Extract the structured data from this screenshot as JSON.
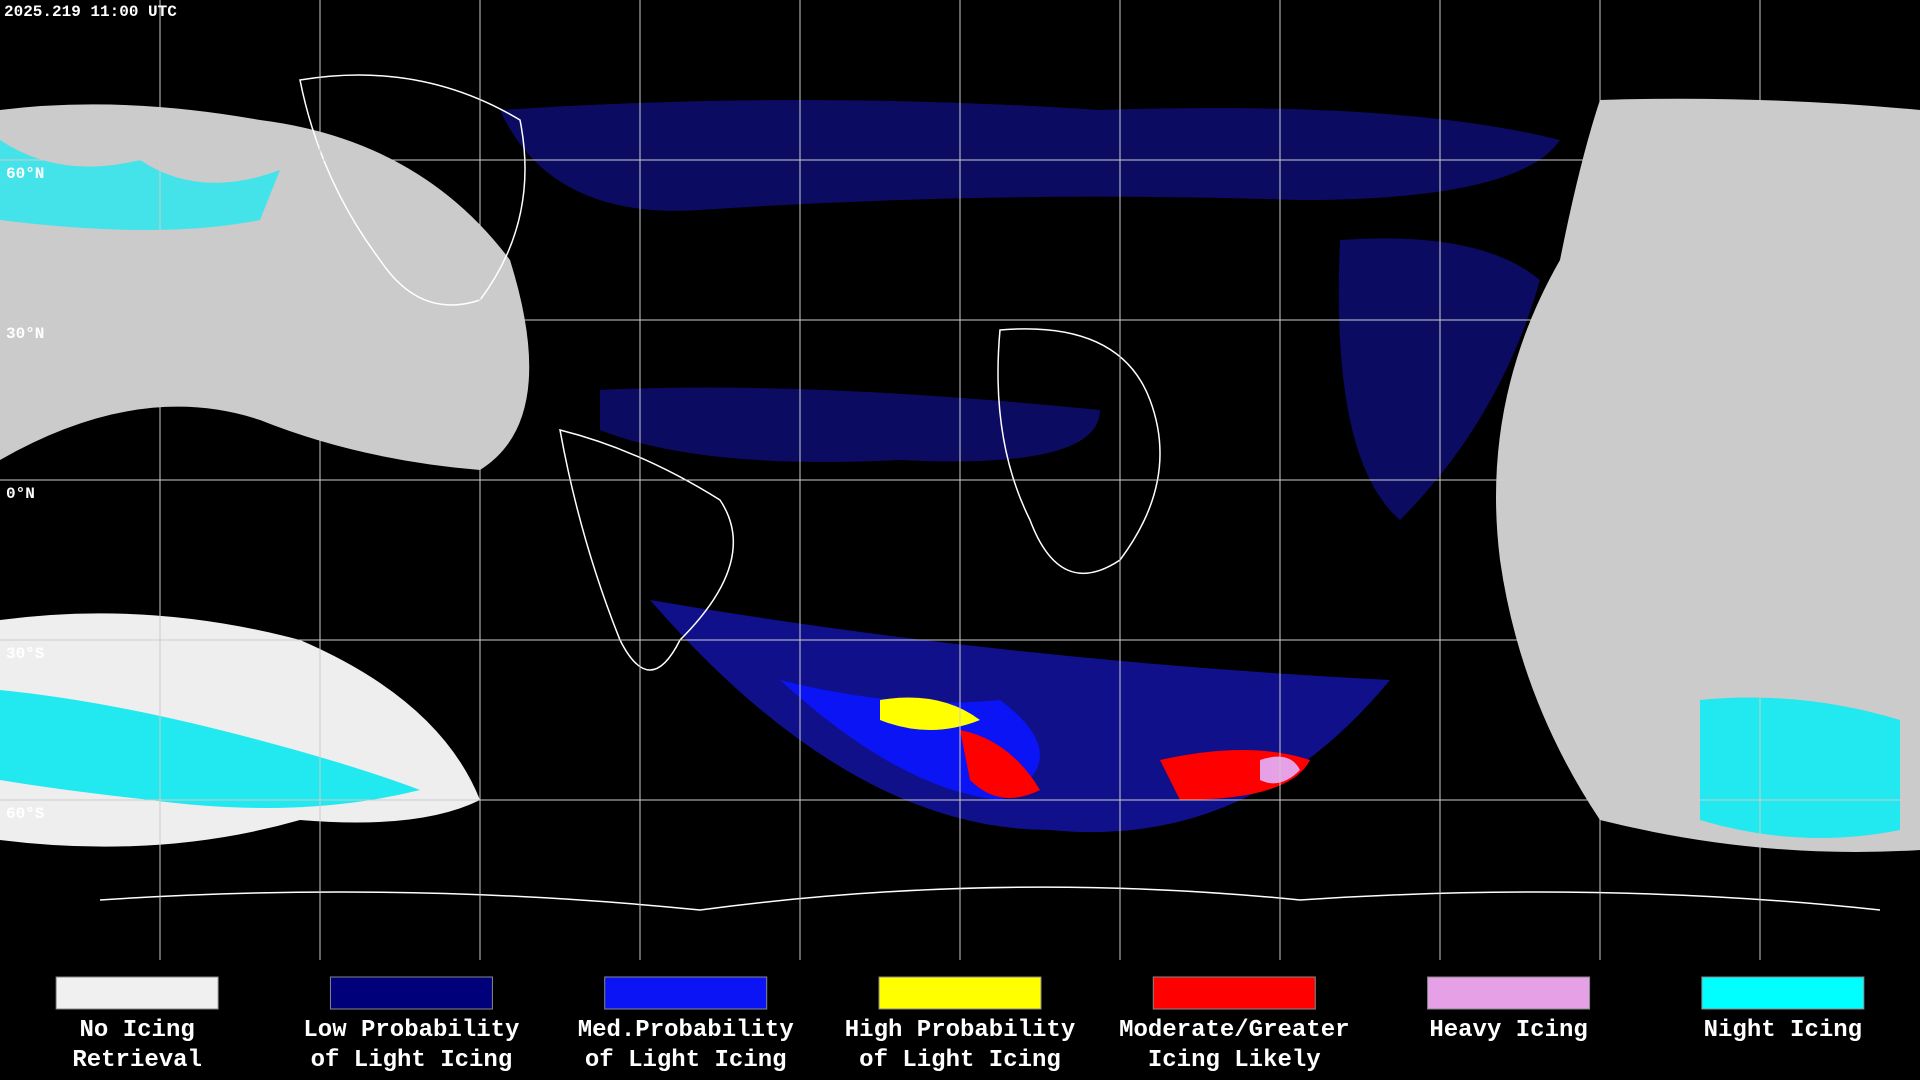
{
  "header": {
    "timestamp": "2025.219 11:00 UTC"
  },
  "map": {
    "latitude_labels": [
      "60°N",
      "30°N",
      "0°N",
      "30°S",
      "60°S"
    ]
  },
  "legend": {
    "items": [
      {
        "lines": [
          "No Icing",
          "Retrieval"
        ],
        "color": "#f0f0f0"
      },
      {
        "lines": [
          "Low Probability",
          "of Light Icing"
        ],
        "color": "#00007a"
      },
      {
        "lines": [
          "Med.Probability",
          "of Light Icing"
        ],
        "color": "#0a14f5"
      },
      {
        "lines": [
          "High Probability",
          "of Light Icing"
        ],
        "color": "#ffff00"
      },
      {
        "lines": [
          "Moderate/Greater",
          "Icing Likely"
        ],
        "color": "#ff0000"
      },
      {
        "lines": [
          "Heavy Icing"
        ],
        "color": "#e6a0e6"
      },
      {
        "lines": [
          "Night Icing"
        ],
        "color": "#00ffff"
      }
    ]
  }
}
